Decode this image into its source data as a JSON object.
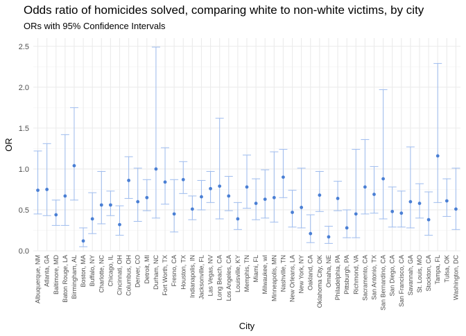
{
  "chart_data": {
    "type": "scatter",
    "title": "Odds ratio of homicides solved, comparing white to non-white victims, by city",
    "subtitle": "ORs with 95% Confidence Intervals",
    "xlabel": "City",
    "ylabel": "OR",
    "ylim": [
      0,
      2.6
    ],
    "yticks": [
      "0.0",
      "0.5",
      "1.0",
      "1.5",
      "2.0",
      "2.5"
    ],
    "grid": true,
    "colors": {
      "point": "#4a7fd4",
      "errorbar": "#9dbbee",
      "grid": "#ebebeb"
    },
    "categories": [
      "Albuquerque, NM",
      "Atlanta, GA",
      "Baltimore, MD",
      "Baton Rouge, LA",
      "Birmingham, AL",
      "Boston, MA",
      "Buffalo, NY",
      "Charlotte, NC",
      "Chicago, IL",
      "Cincinnati, OH",
      "Columbus, OH",
      "Denver, CO",
      "Detroit, MI",
      "Durham, NC",
      "Fort Worth, TX",
      "Fresno, CA",
      "Houston, TX",
      "Indianapolis, IN",
      "Jacksonville, FL",
      "Las Vegas, NV",
      "Long Beach, CA",
      "Los Angeles, CA",
      "Louisville, KY",
      "Memphis, TN",
      "Miami, FL",
      "Milwaukee, wI",
      "Minneapolis, MN",
      "Nashville, TN",
      "New Orleans, LA",
      "New York, NY",
      "Oakland, CA",
      "Oklahoma City, OK",
      "Omaha, NE",
      "Philadelphia, PA",
      "Pittsburgh, PA",
      "Richmond, VA",
      "Sacramento, CA",
      "San Antonio, TX",
      "San Bernardino, CA",
      "San Diego, CA",
      "San Francisco, CA",
      "Savannah, GA",
      "St. Louis, MO",
      "Stockton, CA",
      "Tampa, FL",
      "Tulsa, OK",
      "Washington, DC"
    ],
    "series": [
      {
        "values": [
          0.74,
          0.75,
          0.44,
          0.67,
          1.04,
          0.12,
          0.39,
          0.56,
          0.56,
          0.32,
          0.86,
          0.6,
          0.65,
          1.0,
          0.84,
          0.45,
          0.87,
          0.51,
          0.66,
          0.76,
          0.79,
          0.67,
          0.39,
          0.78,
          0.58,
          0.63,
          0.65,
          0.9,
          0.47,
          0.53,
          0.21,
          0.68,
          0.17,
          0.64,
          0.28,
          0.45,
          0.78,
          0.69,
          0.88,
          0.48,
          0.46,
          0.6,
          0.58,
          0.38,
          1.16,
          0.61,
          0.51
        ],
        "lower": [
          0.45,
          0.43,
          0.31,
          0.31,
          0.62,
          0.05,
          0.21,
          0.33,
          0.43,
          0.19,
          0.64,
          0.36,
          0.49,
          0.4,
          0.57,
          0.23,
          0.7,
          0.38,
          0.5,
          0.59,
          0.39,
          0.49,
          0.26,
          0.52,
          0.38,
          0.4,
          0.35,
          0.65,
          0.29,
          0.28,
          0.1,
          0.48,
          0.09,
          0.49,
          0.16,
          0.16,
          0.45,
          0.46,
          0.39,
          0.29,
          0.29,
          0.28,
          0.4,
          0.19,
          0.59,
          0.42,
          0.26
        ],
        "upper": [
          1.22,
          1.31,
          0.62,
          1.42,
          1.75,
          0.28,
          0.71,
          0.97,
          0.73,
          0.55,
          1.15,
          1.01,
          0.87,
          2.49,
          1.26,
          0.87,
          1.09,
          0.67,
          0.86,
          0.97,
          1.62,
          0.91,
          0.59,
          1.17,
          0.88,
          0.99,
          1.21,
          1.24,
          0.74,
          1.01,
          0.44,
          0.97,
          0.3,
          0.85,
          0.5,
          1.24,
          1.36,
          1.03,
          1.97,
          0.78,
          0.73,
          1.27,
          0.82,
          0.72,
          2.29,
          0.88,
          1.01
        ]
      }
    ]
  }
}
